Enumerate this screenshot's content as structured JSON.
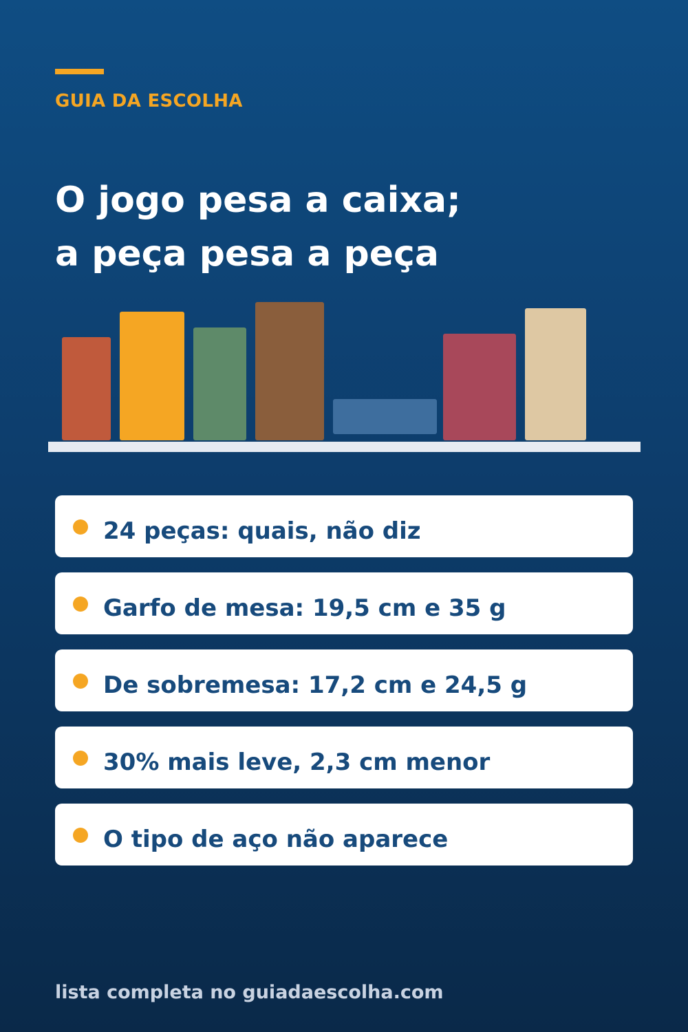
{
  "brand": {
    "name": "GUIA DA ESCOLHA",
    "accent_color": "#f5a623"
  },
  "headline": {
    "line1": "O jogo pesa a caixa;",
    "line2": "a peça pesa a peça"
  },
  "shelf_illustration": {
    "books": [
      {
        "color": "#c05a3c"
      },
      {
        "color": "#f5a623"
      },
      {
        "color": "#5e8a69"
      },
      {
        "color": "#8a5e3c"
      },
      {
        "color": "#3e6e9e"
      },
      {
        "color": "#a8485a"
      },
      {
        "color": "#dec8a3"
      }
    ],
    "shelf_color": "#e6ebf2"
  },
  "points": [
    "24 peças: quais, não diz",
    "Garfo de mesa: 19,5 cm e 35 g",
    "De sobremesa: 17,2 cm e 24,5 g",
    "30% mais leve, 2,3 cm menor",
    "O tipo de aço não aparece"
  ],
  "footer": "lista completa no guiadaescolha.com",
  "colors": {
    "background_top": "#0f4d83",
    "background_bottom": "#0a2949",
    "card_text": "#174a7c"
  }
}
